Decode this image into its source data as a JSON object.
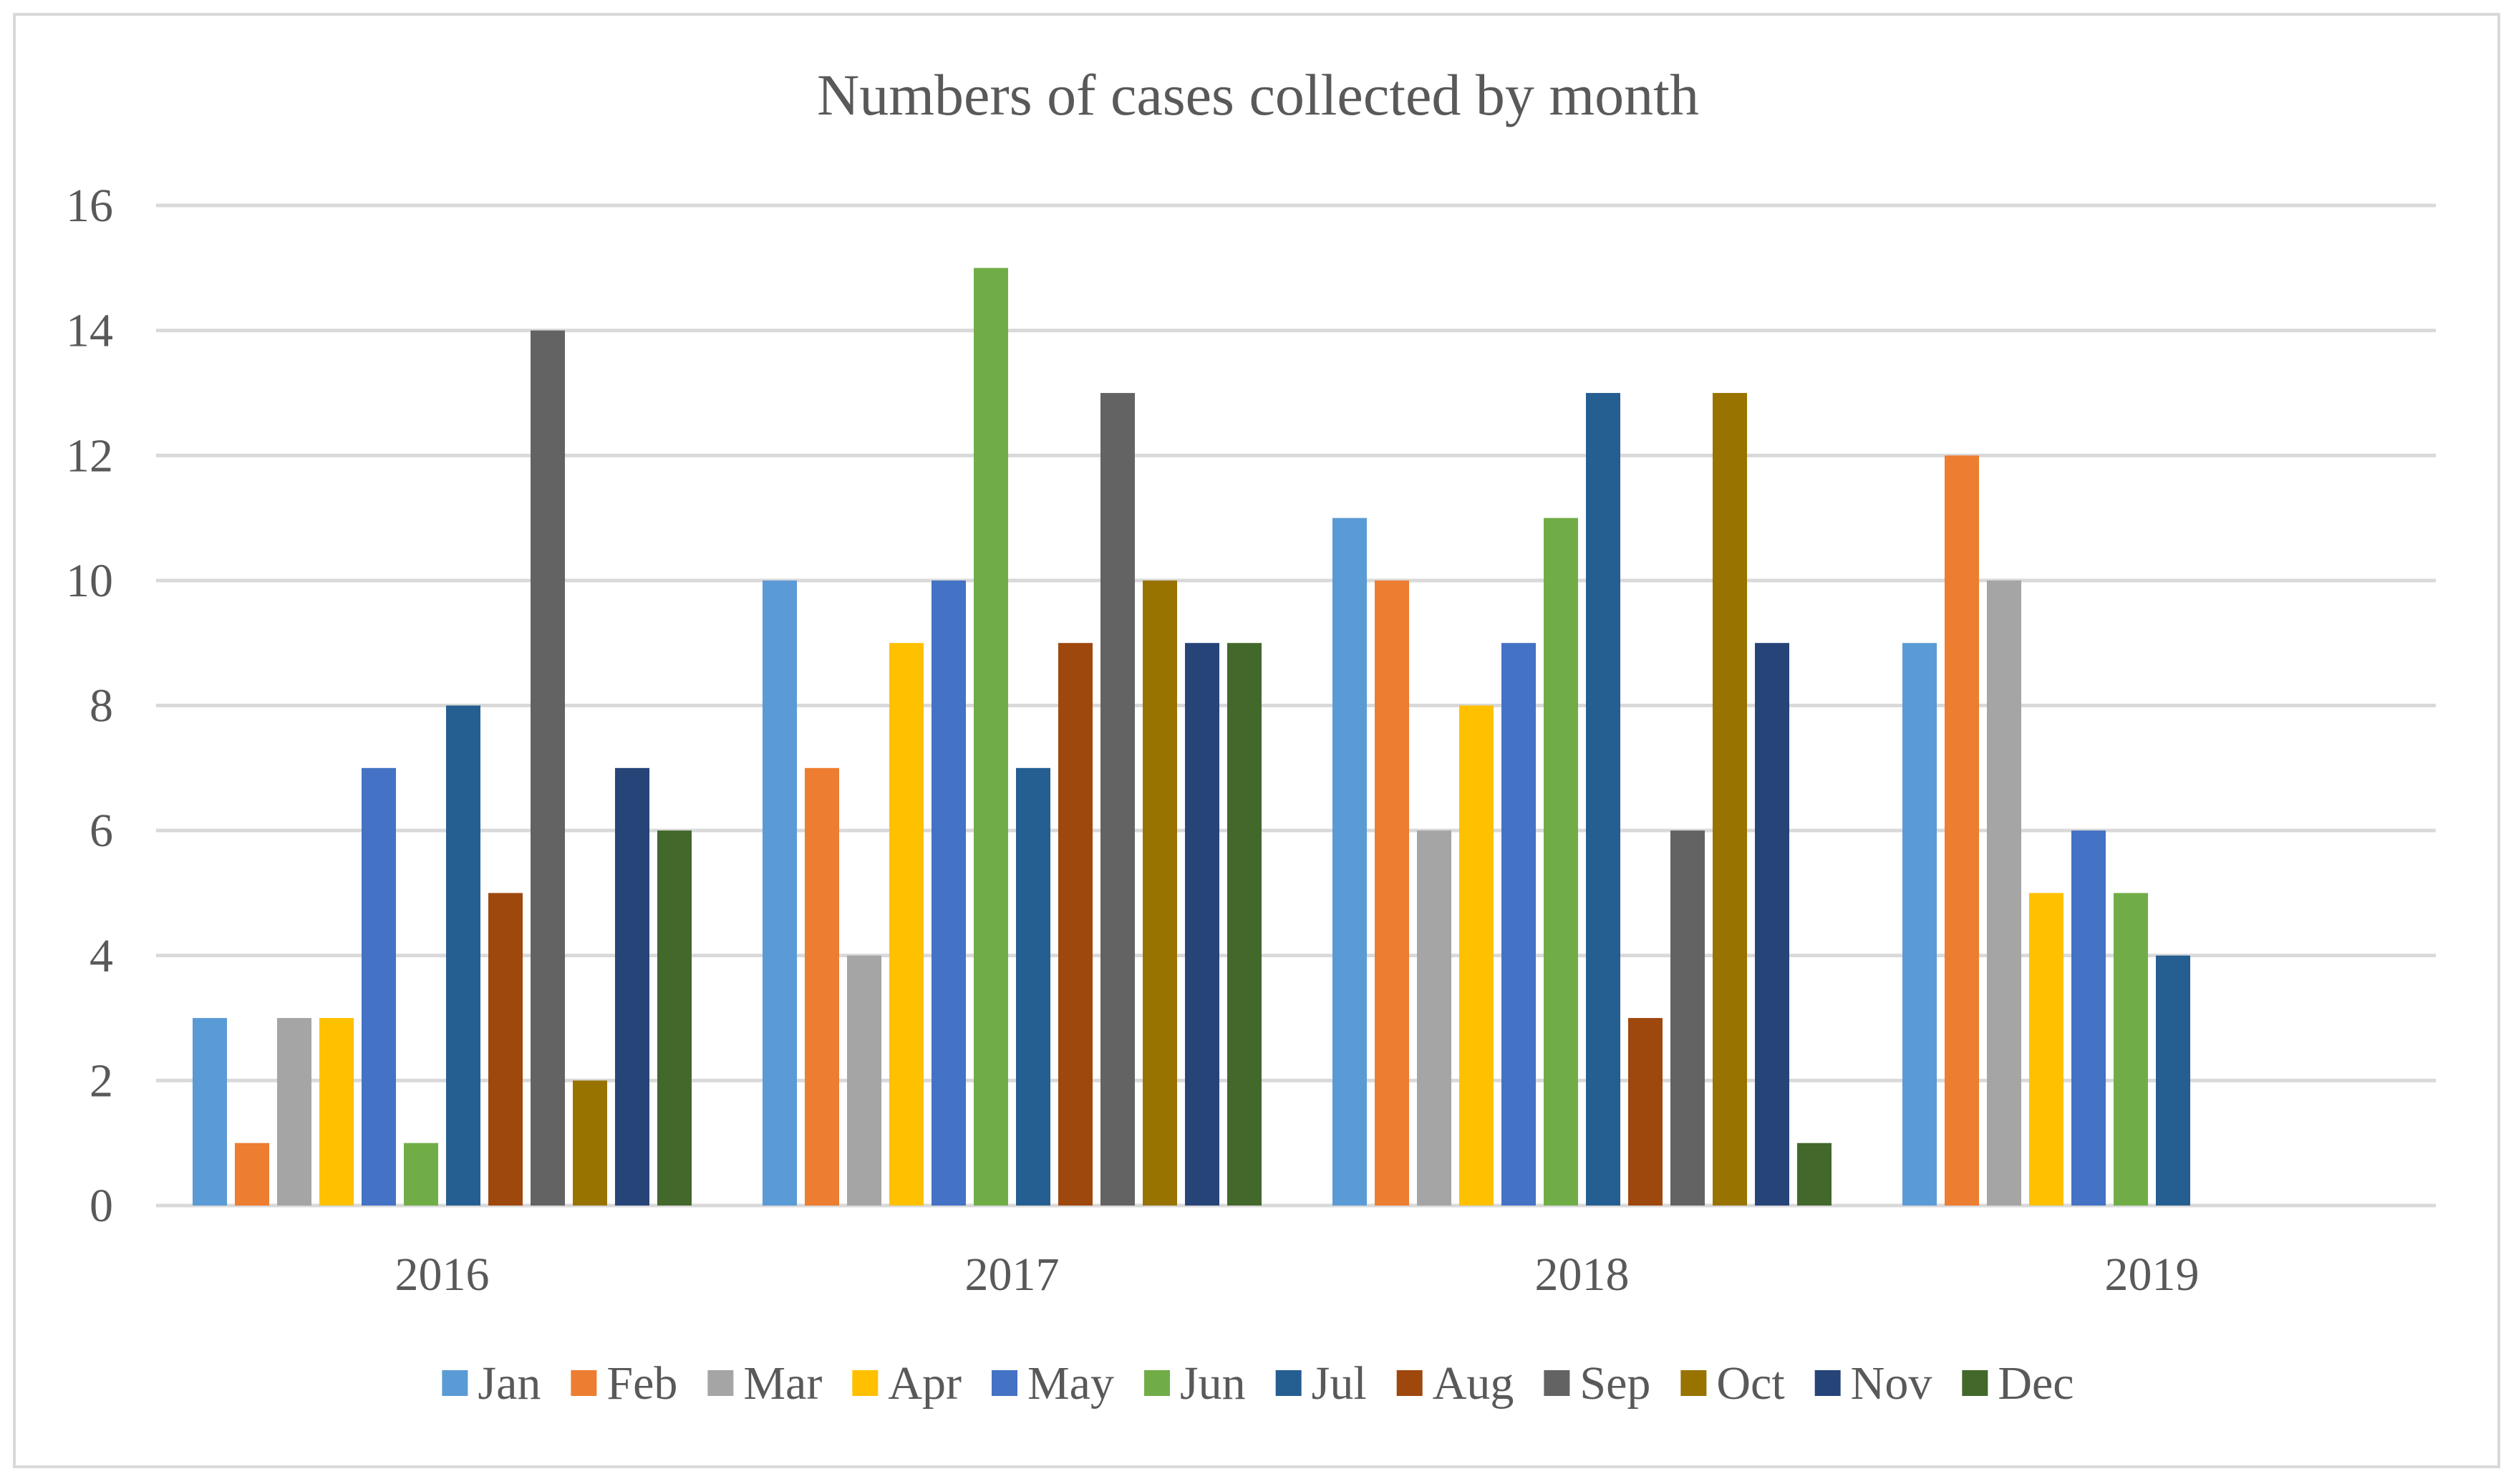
{
  "chart_data": {
    "type": "bar",
    "title": "Numbers of cases collected by month",
    "xlabel": "",
    "ylabel": "",
    "ylim": [
      0,
      16
    ],
    "yticks": [
      0,
      2,
      4,
      6,
      8,
      10,
      12,
      14,
      16
    ],
    "grid": true,
    "legend_position": "bottom",
    "categories": [
      "2016",
      "2017",
      "2018",
      "2019"
    ],
    "series": [
      {
        "name": "Jan",
        "color": "#5b9bd5",
        "values": [
          3,
          10,
          11,
          9
        ]
      },
      {
        "name": "Feb",
        "color": "#ed7d31",
        "values": [
          1,
          7,
          10,
          12
        ]
      },
      {
        "name": "Mar",
        "color": "#a5a5a5",
        "values": [
          3,
          4,
          6,
          10
        ]
      },
      {
        "name": "Apr",
        "color": "#ffc000",
        "values": [
          3,
          9,
          8,
          5
        ]
      },
      {
        "name": "May",
        "color": "#4472c4",
        "values": [
          7,
          10,
          9,
          6
        ]
      },
      {
        "name": "Jun",
        "color": "#70ad47",
        "values": [
          1,
          15,
          11,
          5
        ]
      },
      {
        "name": "Jul",
        "color": "#255e91",
        "values": [
          8,
          7,
          13,
          4
        ]
      },
      {
        "name": "Aug",
        "color": "#9e480e",
        "values": [
          5,
          9,
          3,
          0
        ]
      },
      {
        "name": "Sep",
        "color": "#636363",
        "values": [
          14,
          13,
          6,
          0
        ]
      },
      {
        "name": "Oct",
        "color": "#997300",
        "values": [
          2,
          10,
          13,
          0
        ]
      },
      {
        "name": "Nov",
        "color": "#264478",
        "values": [
          7,
          9,
          9,
          0
        ]
      },
      {
        "name": "Dec",
        "color": "#43682b",
        "values": [
          6,
          9,
          1,
          0
        ]
      }
    ]
  }
}
